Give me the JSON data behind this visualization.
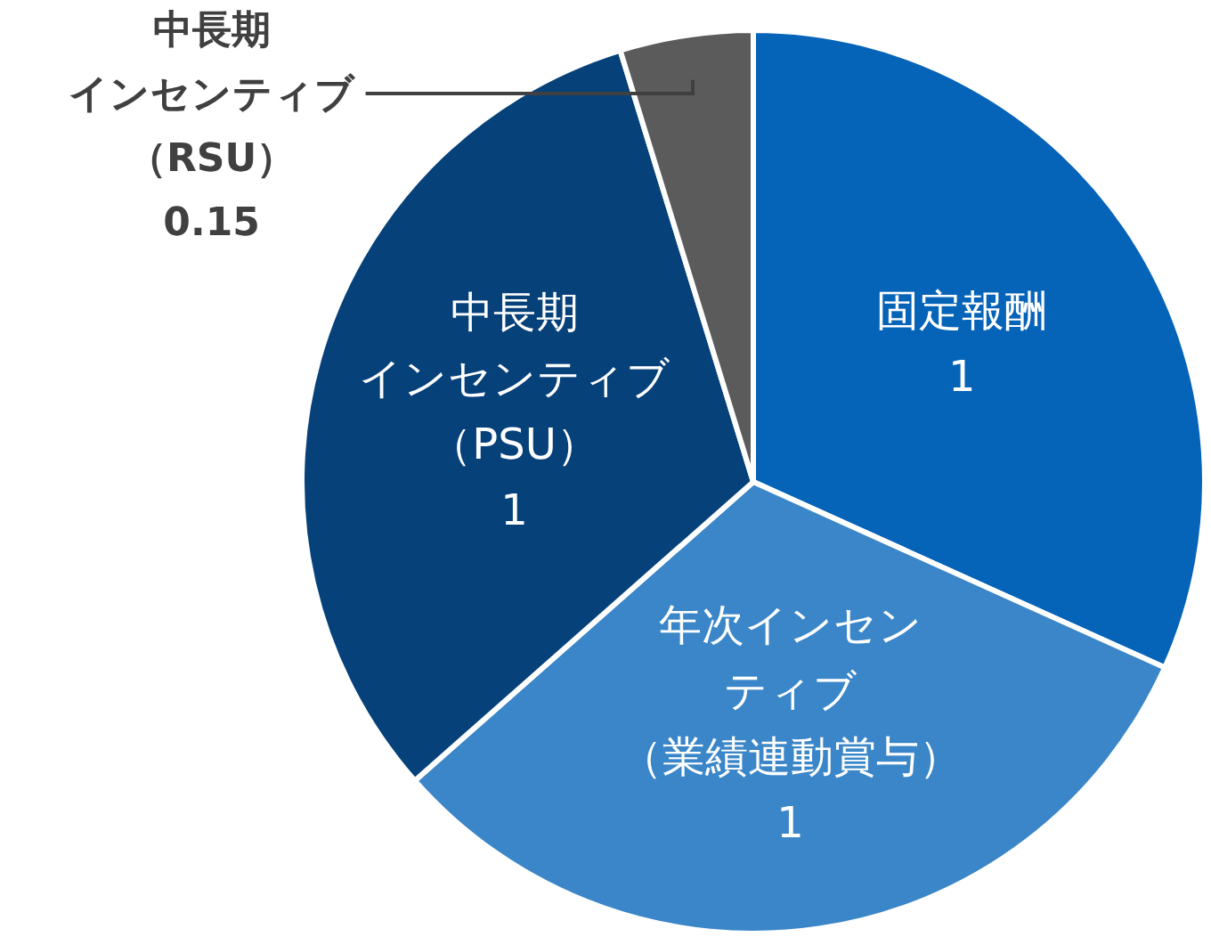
{
  "chart_data": {
    "type": "pie",
    "categories": [
      "固定報酬",
      "年次インセンティブ（業績連動賞与）",
      "中長期インセンティブ（PSU）",
      "中長期インセンティブ（RSU）"
    ],
    "values": [
      1,
      1,
      1,
      0.15
    ],
    "colors": [
      "#0563b8",
      "#3a86c8",
      "#06417a",
      "#5b5b5b"
    ],
    "data_labels": true,
    "legend": false
  }
}
